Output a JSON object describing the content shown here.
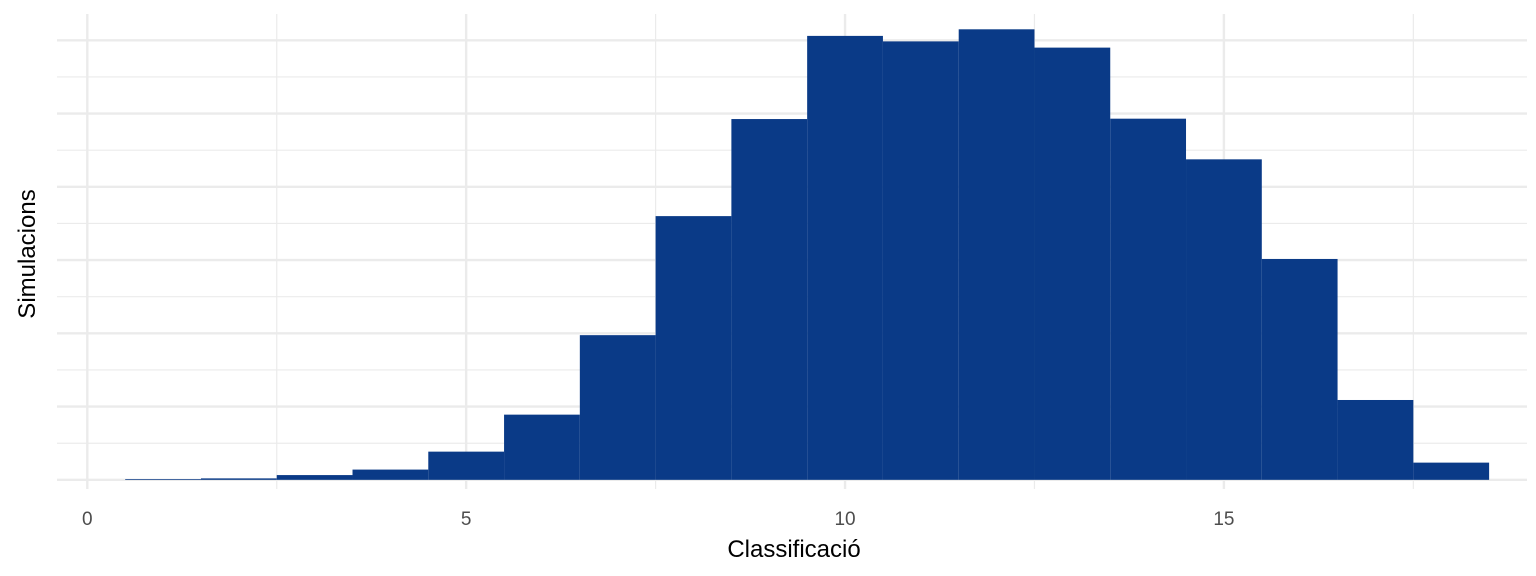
{
  "chart_data": {
    "type": "bar",
    "title": "",
    "xlabel": "Classificació",
    "ylabel": "Simulacions",
    "xlim": [
      -0.4,
      19.0
    ],
    "ylim": [
      -0.25,
      13.1
    ],
    "x_ticks": [
      0,
      5,
      10,
      15
    ],
    "y_grid_values": [
      0,
      2,
      4,
      6,
      8,
      10,
      12
    ],
    "y_tick_labels_shown": false,
    "grid": true,
    "legend": "none",
    "bin_width": 1,
    "x": [
      1,
      2,
      3,
      4,
      5,
      6,
      7,
      8,
      9,
      10,
      11,
      12,
      13,
      14,
      15,
      16,
      17,
      18
    ],
    "values": [
      0.02,
      0.04,
      0.13,
      0.28,
      0.77,
      1.78,
      3.95,
      7.2,
      9.85,
      12.12,
      11.97,
      12.3,
      11.8,
      9.86,
      8.75,
      6.03,
      2.18,
      0.47
    ],
    "bar_color": "#0a3a87",
    "grid_color": "#ebebeb",
    "background": "#ffffff"
  }
}
